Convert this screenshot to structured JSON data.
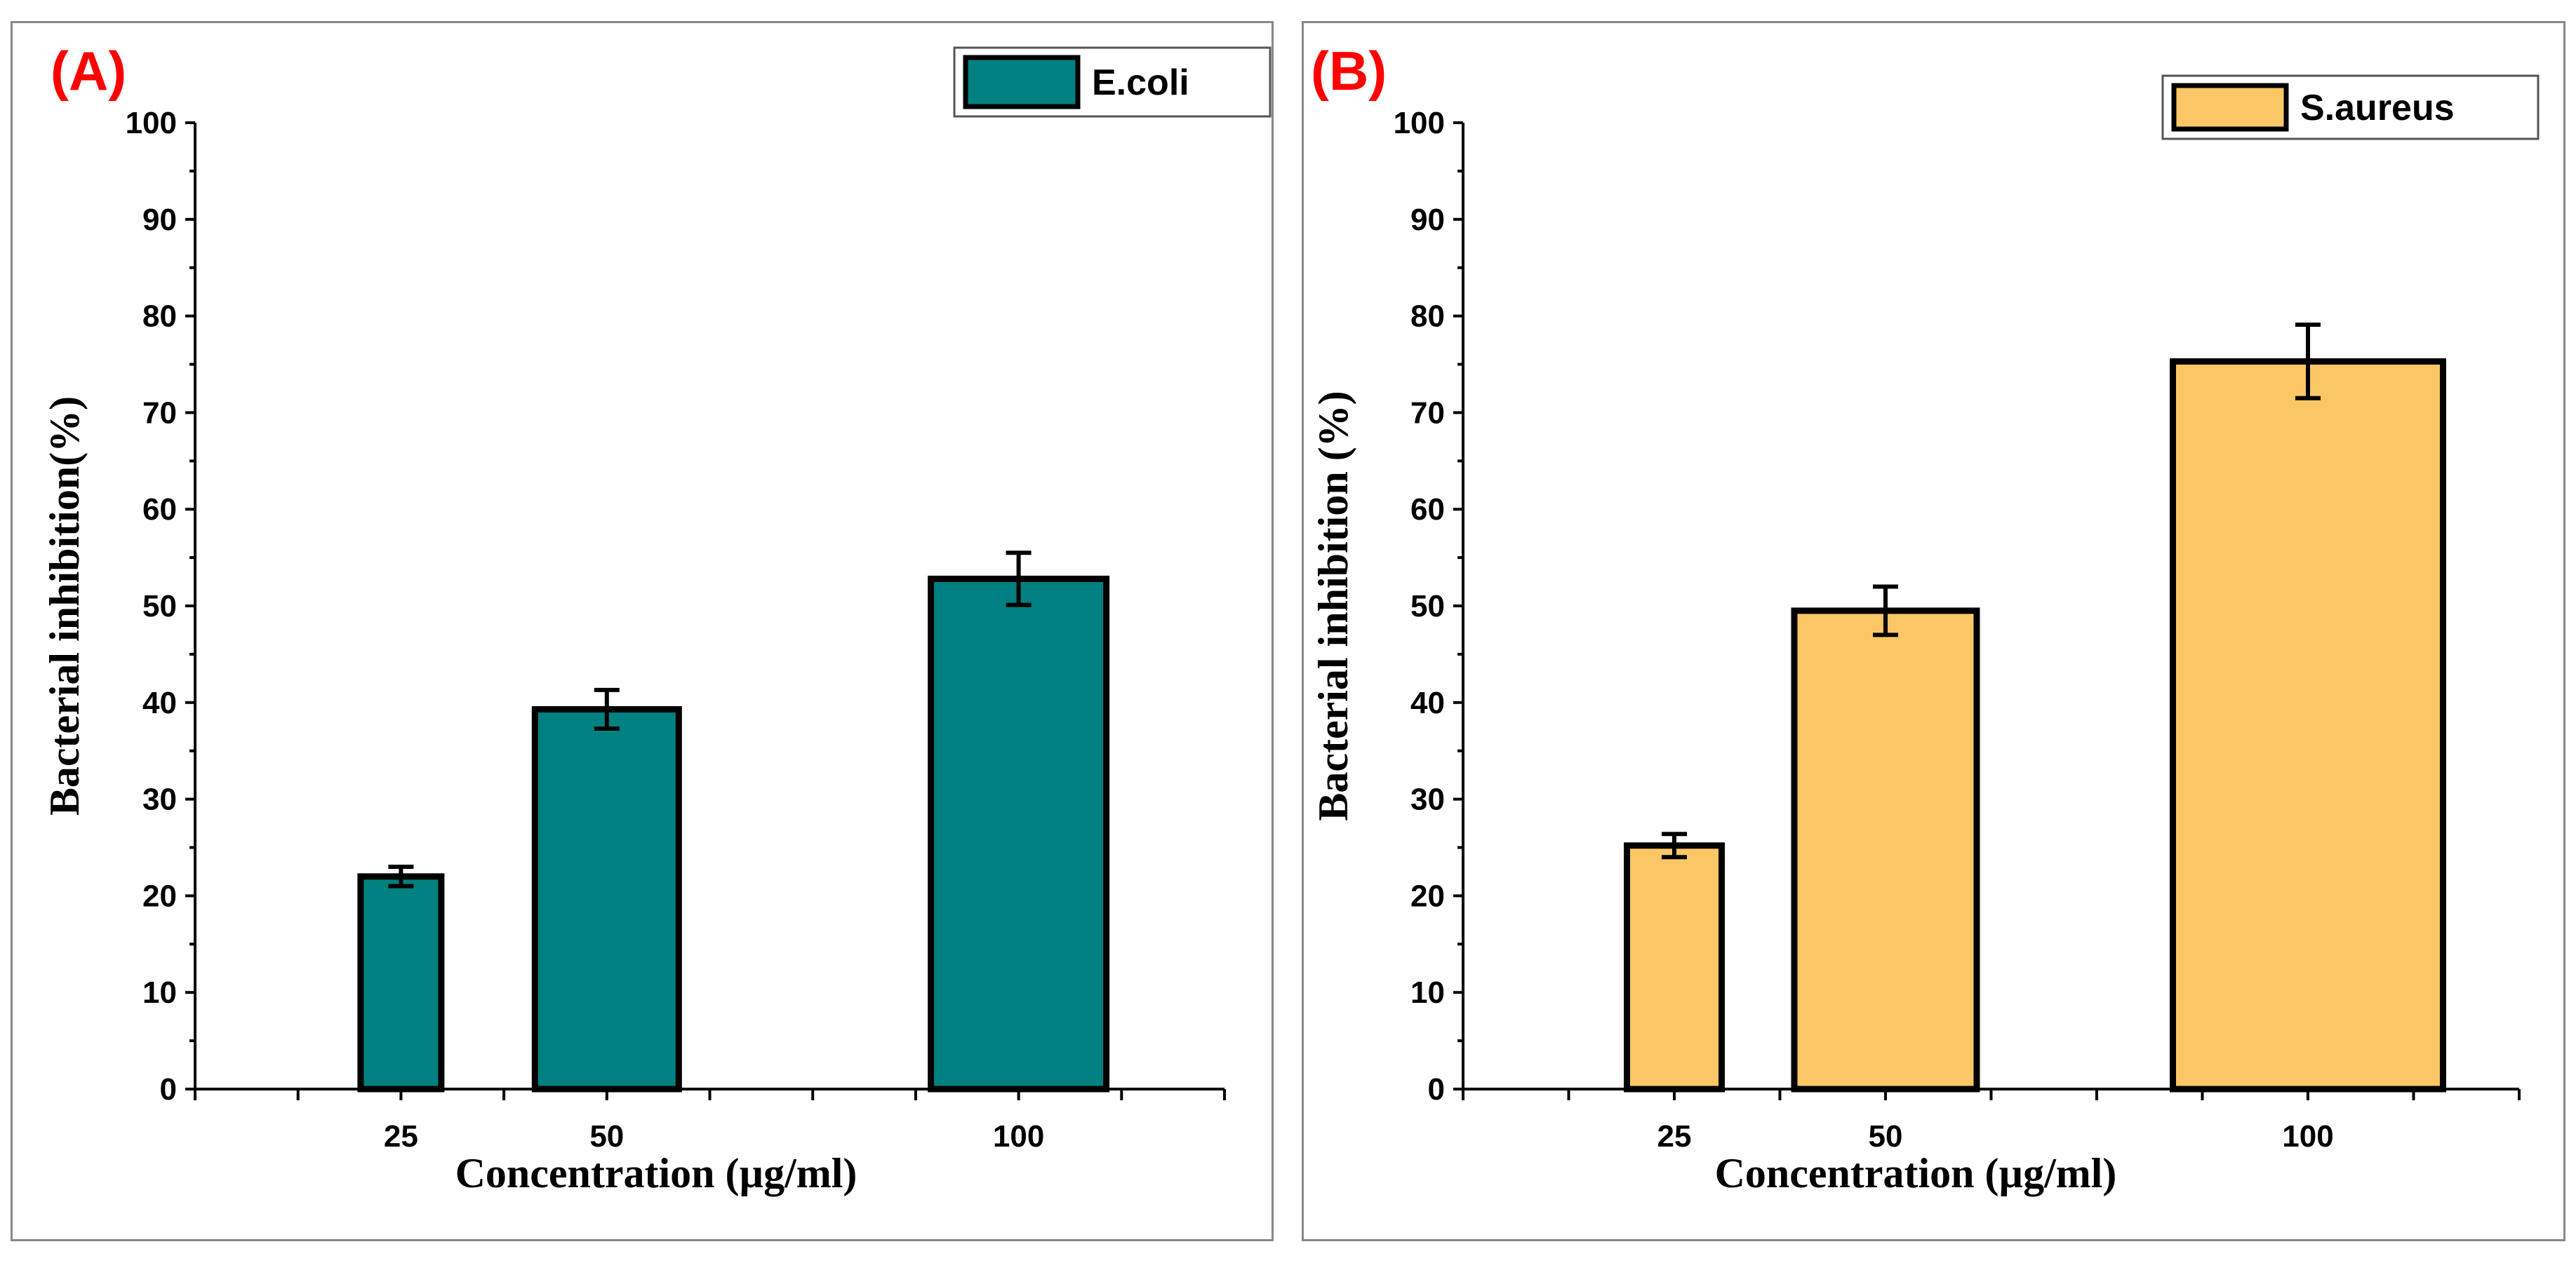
{
  "chart_data": [
    {
      "type": "bar",
      "panel_label": "(A)",
      "categories": [
        "25",
        "50",
        "100"
      ],
      "x_positions": [
        25,
        50,
        100
      ],
      "xlim": [
        0,
        125
      ],
      "series": [
        {
          "name": "E.coli",
          "color": "#008080",
          "values": [
            22,
            39.3,
            52.8
          ],
          "errors": [
            1.0,
            2.0,
            2.7
          ]
        }
      ],
      "xlabel": "Concentration (µg/ml)",
      "ylabel": "Bacterial inhibition(%)",
      "ylim": [
        0,
        100
      ],
      "yticks": [
        "0",
        "10",
        "20",
        "30",
        "40",
        "50",
        "60",
        "70",
        "80",
        "90",
        "100"
      ],
      "legend": "top-right",
      "grid": false
    },
    {
      "type": "bar",
      "panel_label": "(B)",
      "categories": [
        "25",
        "50",
        "100"
      ],
      "x_positions": [
        25,
        50,
        100
      ],
      "xlim": [
        0,
        125
      ],
      "series": [
        {
          "name": "S.aureus",
          "color": "#FBC766",
          "values": [
            25.2,
            49.5,
            75.3
          ],
          "errors": [
            1.2,
            2.5,
            3.8
          ]
        }
      ],
      "xlabel": "Concentration (µg/ml)",
      "ylabel": "Bacterial inhibition (%)",
      "ylim": [
        0,
        100
      ],
      "yticks": [
        "0",
        "10",
        "20",
        "30",
        "40",
        "50",
        "60",
        "70",
        "80",
        "90",
        "100"
      ],
      "legend": "top-right",
      "grid": false
    }
  ]
}
